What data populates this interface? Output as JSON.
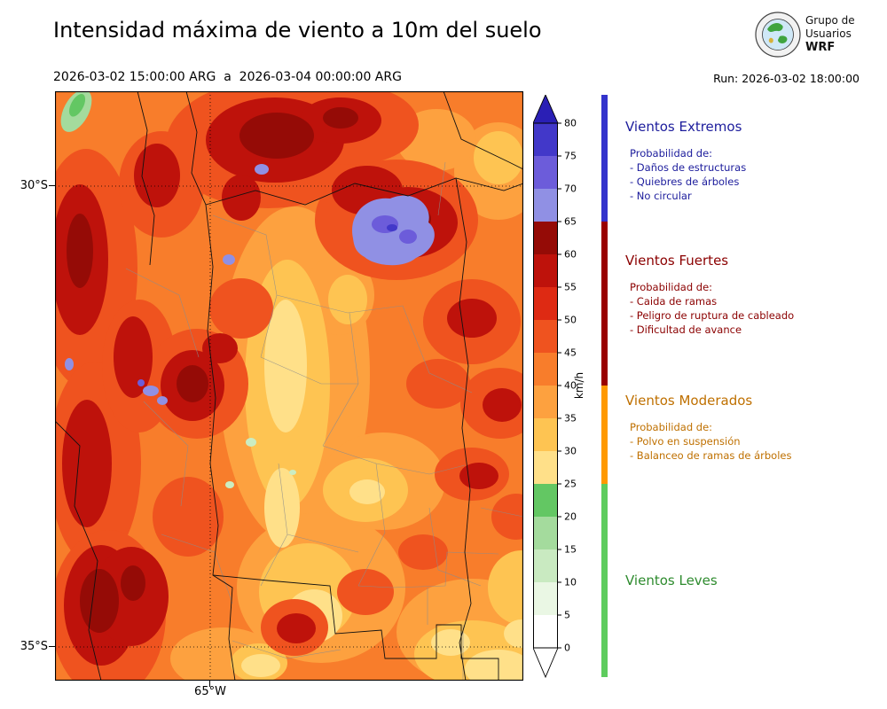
{
  "header": {
    "title": "Intensidad máxima de viento a 10m del suelo",
    "valid_period": "2026-03-02 15:00:00 ARG  a  2026-03-04 00:00:00 ARG",
    "run_label": "Run: 2026-03-02 18:00:00",
    "logo": {
      "line1": "Grupo de",
      "line2": "Usuarios",
      "line3": "WRF"
    }
  },
  "map": {
    "y_axis_labels": {
      "lat30": "30°S",
      "lat35": "35°S"
    },
    "x_axis_labels": {
      "lon65": "65°W"
    }
  },
  "colorbar": {
    "unit": "km/h",
    "ticks": [
      0,
      5,
      10,
      15,
      20,
      25,
      30,
      35,
      40,
      45,
      50,
      55,
      60,
      65,
      70,
      75,
      80
    ],
    "segment_colors": [
      "#FFFFFF",
      "#EAF7E4",
      "#C9EAC1",
      "#A4DB9D",
      "#63C763",
      "#FFE089",
      "#FEC452",
      "#FDA13F",
      "#F87D2B",
      "#EF531F",
      "#DE2A13",
      "#BE120B",
      "#950B06",
      "#9090E4",
      "#6C5CDA",
      "#4238C9"
    ],
    "arrow_top_color": "#2A1FB5",
    "arrow_bottom_color": "#FFFFFF"
  },
  "categories": [
    {
      "title": "Vientos Extremos",
      "text_color": "#1c1c9c",
      "bar_color": "#3333CC",
      "range_kmh": [
        65,
        null
      ],
      "prob_label": "Probabilidad de:",
      "items": [
        "- Daños de estructuras",
        "- Quiebres de árboles",
        "- No circular"
      ]
    },
    {
      "title": "Vientos Fuertes",
      "text_color": "#8b0000",
      "bar_color": "#990000",
      "range_kmh": [
        40,
        65
      ],
      "prob_label": "Probabilidad de:",
      "items": [
        "- Caida de ramas",
        "- Peligro de ruptura de cableado",
        "- Dificultad de avance"
      ]
    },
    {
      "title": "Vientos Moderados",
      "text_color": "#bf7000",
      "bar_color": "#FF9900",
      "range_kmh": [
        25,
        40
      ],
      "prob_label": "Probabilidad de:",
      "items": [
        "- Polvo en suspensión",
        "- Balanceo de ramas de árboles"
      ]
    },
    {
      "title": "Vientos Leves",
      "text_color": "#2e8b2e",
      "bar_color": "#5ECC5E",
      "range_kmh": [
        null,
        25
      ],
      "prob_label": "",
      "items": []
    }
  ],
  "chart_data": {
    "type": "heatmap",
    "title": "Intensidad máxima de viento a 10m del suelo",
    "variable": "Maximum wind intensity at 10 m above ground",
    "units": "km/h",
    "valid_from": "2026-03-02 15:00:00 ARG",
    "valid_to": "2026-03-04 00:00:00 ARG",
    "model_run": "2026-03-02 18:00:00",
    "colorbar_range": [
      0,
      80
    ],
    "colorbar_extend": "both",
    "contour_levels": [
      0,
      5,
      10,
      15,
      20,
      25,
      30,
      35,
      40,
      45,
      50,
      55,
      60,
      65,
      70,
      75,
      80
    ],
    "lat_gridlines": [
      "30°S",
      "35°S"
    ],
    "lon_gridlines": [
      "65°W"
    ],
    "legend_position": "right",
    "categories": [
      {
        "name": "Vientos Extremos",
        "range_kmh": "> 65"
      },
      {
        "name": "Vientos Fuertes",
        "range_kmh": "40–65"
      },
      {
        "name": "Vientos Moderados",
        "range_kmh": "25–40"
      },
      {
        "name": "Vientos Leves",
        "range_kmh": "0–25"
      }
    ],
    "map_summary": "Filled contours over central Argentina: widespread 40–65 km/h (orange/red), dark-red >55 km/h cores along the west and north-center, an isolated 65–75 km/h purple patch near 30°S in the northeast-center, and lighter 25–40 km/h yellow bands through the center and southeast."
  }
}
